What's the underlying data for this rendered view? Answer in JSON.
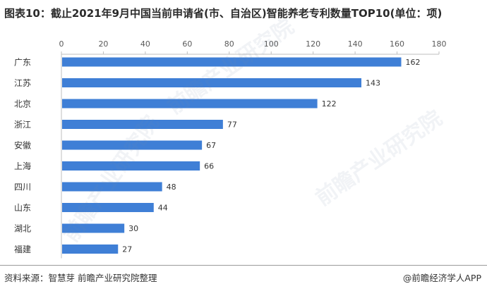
{
  "title": "图表10：截止2021年9月中国当前申请省(市、自治区)智能养老专利数量TOP10(单位：项)",
  "source": "资料来源：智慧芽 前瞻产业研究院整理",
  "credit": "@前瞻经济学人APP",
  "watermark": {
    "text": "前瞻产业研究院",
    "logo": "前瞻经济学人 watermark logo"
  },
  "colors": {
    "bar": "#3f7fd6",
    "axis": "#bfbfbf"
  },
  "chart_data": {
    "type": "bar",
    "orientation": "horizontal",
    "categories": [
      "广东",
      "江苏",
      "北京",
      "浙江",
      "安徽",
      "上海",
      "四川",
      "山东",
      "湖北",
      "福建"
    ],
    "values": [
      162,
      143,
      122,
      77,
      67,
      66,
      48,
      44,
      30,
      27
    ],
    "xlim": [
      0,
      180
    ],
    "xticks": [
      0,
      20,
      40,
      60,
      80,
      100,
      120,
      140,
      160,
      180
    ],
    "x_axis_position": "top",
    "grid": false,
    "legend": "none"
  }
}
